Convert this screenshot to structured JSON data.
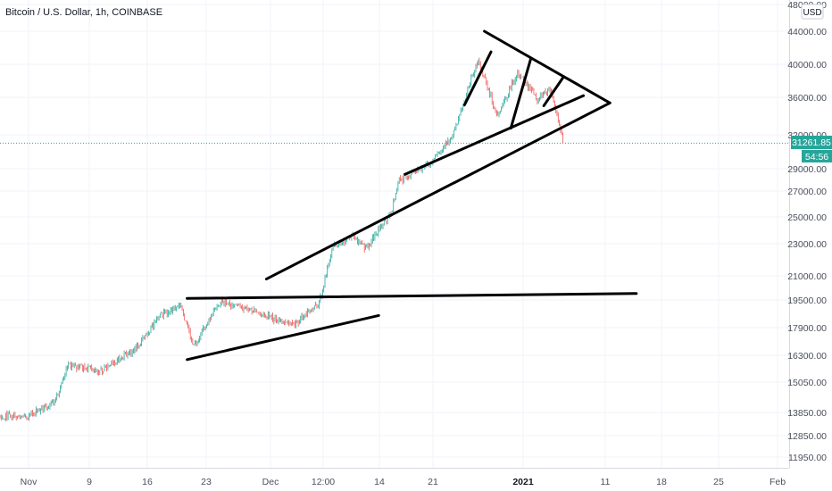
{
  "symbol_title": "Bitcoin / U.S. Dollar, 1h, COINBASE",
  "currency_button": "USD",
  "last_price_label": "31261.85",
  "countdown_label": "54:56",
  "colors": {
    "up": "#26a69a",
    "down": "#ef5350",
    "price_line": "#26a69a",
    "trendline": "#000000",
    "grid": "#f0f3fa"
  },
  "chart_data": {
    "type": "candlestick",
    "title": "Bitcoin / U.S. Dollar, 1h, COINBASE",
    "price_axis_ticks": [
      "48000.00",
      "44000.00",
      "40000.00",
      "36000.00",
      "32000.00",
      "29000.00",
      "27000.00",
      "25000.00",
      "23000.00",
      "21000.00",
      "19500.00",
      "17900.00",
      "16300.00",
      "15050.00",
      "13850.00",
      "12850.00",
      "11950.00"
    ],
    "time_axis_ticks": [
      {
        "label": "Nov",
        "bold": false
      },
      {
        "label": "9",
        "bold": false
      },
      {
        "label": "16",
        "bold": false
      },
      {
        "label": "23",
        "bold": false
      },
      {
        "label": "Dec",
        "bold": false
      },
      {
        "label": "12:00",
        "bold": false
      },
      {
        "label": "14",
        "bold": false
      },
      {
        "label": "21",
        "bold": false
      },
      {
        "label": "2021",
        "bold": true
      },
      {
        "label": "11",
        "bold": false
      },
      {
        "label": "18",
        "bold": false
      },
      {
        "label": "25",
        "bold": false
      },
      {
        "label": "Feb",
        "bold": false
      }
    ],
    "last_price": 31261.85,
    "approx_price_path": [
      {
        "date": "2020-11-01",
        "price": 13700
      },
      {
        "date": "2020-11-05",
        "price": 14300
      },
      {
        "date": "2020-11-07",
        "price": 15800
      },
      {
        "date": "2020-11-12",
        "price": 15600
      },
      {
        "date": "2020-11-17",
        "price": 16600
      },
      {
        "date": "2020-11-21",
        "price": 18600
      },
      {
        "date": "2020-11-24",
        "price": 19200
      },
      {
        "date": "2020-11-26",
        "price": 16800
      },
      {
        "date": "2020-11-30",
        "price": 19400
      },
      {
        "date": "2020-12-04",
        "price": 19000
      },
      {
        "date": "2020-12-11",
        "price": 18000
      },
      {
        "date": "2020-12-15",
        "price": 19300
      },
      {
        "date": "2020-12-17",
        "price": 22800
      },
      {
        "date": "2020-12-20",
        "price": 23600
      },
      {
        "date": "2020-12-22",
        "price": 22700
      },
      {
        "date": "2020-12-26",
        "price": 25500
      },
      {
        "date": "2020-12-27",
        "price": 27900
      },
      {
        "date": "2021-01-01",
        "price": 29500
      },
      {
        "date": "2021-01-04",
        "price": 31700
      },
      {
        "date": "2021-01-08",
        "price": 40500
      },
      {
        "date": "2021-01-11",
        "price": 34000
      },
      {
        "date": "2021-01-14",
        "price": 39000
      },
      {
        "date": "2021-01-17",
        "price": 35800
      },
      {
        "date": "2021-01-19",
        "price": 37000
      },
      {
        "date": "2021-01-21",
        "price": 31261.85
      }
    ],
    "drawn_trendlines": [
      {
        "from": {
          "date": "2020-11-25",
          "price": 19600
        },
        "to": {
          "date": "2021-02-01",
          "price": 19900
        }
      },
      {
        "from": {
          "date": "2020-11-25",
          "price": 16100
        },
        "to": {
          "date": "2020-12-24",
          "price": 18600
        }
      },
      {
        "from": {
          "date": "2020-12-07",
          "price": 20800
        },
        "to": {
          "date": "2021-01-28",
          "price": 35400
        }
      },
      {
        "from": {
          "date": "2020-12-28",
          "price": 28500
        },
        "to": {
          "date": "2021-01-24",
          "price": 36200
        }
      },
      {
        "from": {
          "date": "2021-01-09",
          "price": 44000
        },
        "to": {
          "date": "2021-01-28",
          "price": 35400
        }
      },
      {
        "from": {
          "date": "2021-01-06",
          "price": 35200
        },
        "to": {
          "date": "2021-01-10",
          "price": 41500
        }
      },
      {
        "from": {
          "date": "2021-01-13",
          "price": 32700
        },
        "to": {
          "date": "2021-01-16",
          "price": 40600
        }
      },
      {
        "from": {
          "date": "2021-01-18",
          "price": 35100
        },
        "to": {
          "date": "2021-01-21",
          "price": 38500
        }
      }
    ]
  }
}
